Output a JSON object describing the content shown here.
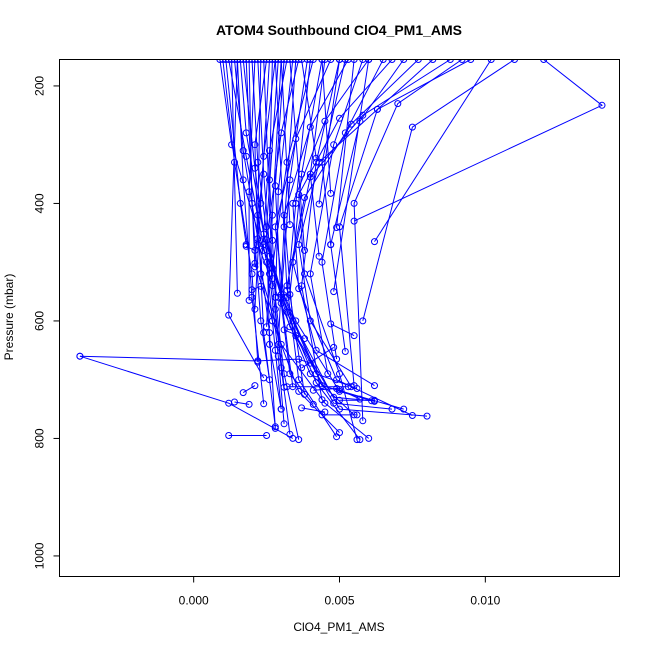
{
  "chart_data": {
    "type": "line",
    "title": "ATOM4 Southbound ClO4_PM1_AMS",
    "xlabel": "ClO4_PM1_AMS",
    "ylabel": "Pressure (mbar)",
    "xlim": [
      -0.0046,
      0.0146
    ],
    "ylim": [
      1035,
      155
    ],
    "y_reversed": true,
    "x_ticks": [
      0.0,
      0.005,
      0.01
    ],
    "x_tick_labels": [
      "0.000",
      "0.005",
      "0.010"
    ],
    "y_ticks": [
      200,
      400,
      600,
      800,
      1000
    ],
    "y_tick_labels": [
      "200",
      "400",
      "600",
      "800",
      "1000"
    ],
    "grid": false,
    "legend": "none",
    "colors": {
      "series": "#0000ff",
      "axis": "#000000",
      "background": "#ffffff"
    },
    "marker": "open-circle",
    "series": [
      {
        "x": [
          0.0009,
          0.0013,
          0.0024,
          0.0035,
          0.005,
          0.0062
        ],
        "y": [
          155,
          300,
          480,
          600,
          720,
          737
        ]
      },
      {
        "x": [
          0.0016,
          0.0018,
          0.0024,
          0.003,
          0.0042,
          0.0056
        ],
        "y": [
          155,
          280,
          452,
          555,
          690,
          715
        ]
      },
      {
        "x": [
          0.002,
          0.0022,
          0.0026,
          0.0033,
          0.0048,
          0.0068
        ],
        "y": [
          155,
          330,
          490,
          610,
          740,
          750
        ]
      },
      {
        "x": [
          0.0025,
          0.0021,
          0.0022,
          0.0029,
          0.004,
          0.0055
        ],
        "y": [
          155,
          300,
          470,
          560,
          690,
          760
        ]
      },
      {
        "x": [
          0.0028,
          0.0024,
          0.0021,
          0.0027,
          0.0036,
          0.005
        ],
        "y": [
          155,
          320,
          502,
          600,
          720,
          790
        ]
      },
      {
        "x": [
          0.0032,
          0.0026,
          0.0023,
          0.003,
          0.0045,
          0.006
        ],
        "y": [
          155,
          310,
          520,
          640,
          740,
          800
        ]
      },
      {
        "x": [
          0.0036,
          0.003,
          0.0025,
          0.0032,
          0.0042,
          0.0057
        ],
        "y": [
          155,
          280,
          462,
          585,
          705,
          802
        ]
      },
      {
        "x": [
          0.0041,
          0.0032,
          0.0027,
          0.0035,
          0.0048,
          0.0061
        ],
        "y": [
          155,
          330,
          510,
          625,
          730,
          736
        ]
      },
      {
        "x": [
          0.0047,
          0.0035,
          0.0028,
          0.0031,
          0.0044,
          0.0072
        ],
        "y": [
          155,
          290,
          440,
          560,
          710,
          750
        ]
      },
      {
        "x": [
          0.0053,
          0.004,
          0.0031,
          0.0034,
          0.005,
          0.008
        ],
        "y": [
          155,
          270,
          420,
          600,
          750,
          762
        ]
      },
      {
        "x": [
          0.006,
          0.0045,
          0.0034,
          0.0036,
          0.0049,
          0.0075
        ],
        "y": [
          155,
          260,
          400,
          545,
          700,
          761
        ]
      },
      {
        "x": [
          0.0068,
          0.005,
          0.0036,
          0.0038,
          0.005,
          0.0056
        ],
        "y": [
          155,
          255,
          385,
          520,
          690,
          802
        ]
      },
      {
        "x": [
          0.0077,
          0.0054,
          0.0038,
          0.0032,
          0.0036,
          0.0049
        ],
        "y": [
          155,
          265,
          390,
          540,
          700,
          797
        ]
      },
      {
        "x": [
          0.0088,
          0.0058,
          0.004,
          0.0034,
          0.0042,
          0.0062
        ],
        "y": [
          155,
          250,
          355,
          500,
          650,
          710
        ]
      },
      {
        "x": [
          0.0095,
          0.0063,
          0.0043,
          0.0036,
          0.004,
          0.0054
        ],
        "y": [
          155,
          240,
          330,
          470,
          600,
          712
        ]
      },
      {
        "x": [
          0.0012,
          0.0018,
          0.0025,
          0.0028,
          0.003
        ],
        "y": [
          155,
          320,
          500,
          650,
          750
        ]
      },
      {
        "x": [
          0.0017,
          0.0021,
          0.0026,
          0.0029,
          0.0031
        ],
        "y": [
          155,
          340,
          520,
          660,
          775
        ]
      },
      {
        "x": [
          0.0022,
          0.0024,
          0.0027,
          0.003,
          0.0033
        ],
        "y": [
          155,
          350,
          540,
          680,
          793
        ]
      },
      {
        "x": [
          0.0027,
          0.0026,
          0.0028,
          0.0031,
          0.0036
        ],
        "y": [
          155,
          360,
          560,
          690,
          802
        ]
      },
      {
        "x": [
          0.0031,
          0.0028,
          0.003,
          0.0033,
          0.0041
        ],
        "y": [
          155,
          370,
          570,
          690,
          742
        ]
      },
      {
        "x": [
          0.0014,
          0.0017,
          0.0022,
          0.0026,
          0.0028
        ],
        "y": [
          155,
          310,
          460,
          620,
          783
        ]
      },
      {
        "x": [
          0.001,
          0.0014,
          0.002,
          0.0022
        ],
        "y": [
          155,
          330,
          520,
          670
        ]
      },
      {
        "x": [
          0.0015,
          0.0017,
          0.002,
          0.0024
        ],
        "y": [
          155,
          360,
          560,
          741
        ]
      },
      {
        "x": [
          0.0019,
          0.002,
          0.0023,
          0.0026
        ],
        "y": [
          155,
          400,
          600,
          700
        ]
      },
      {
        "x": [
          0.0023,
          0.0022,
          0.0024,
          0.0028
        ],
        "y": [
          155,
          420,
          620,
          780
        ]
      },
      {
        "x": [
          0.0029,
          0.0025,
          0.0026,
          0.003
        ],
        "y": [
          155,
          440,
          640,
          750
        ]
      },
      {
        "x": [
          0.0034,
          0.0029,
          0.0028,
          0.0031
        ],
        "y": [
          155,
          380,
          580,
          713
        ]
      },
      {
        "x": [
          0.0039,
          0.0033,
          0.003,
          0.0034
        ],
        "y": [
          155,
          360,
          560,
          712
        ]
      },
      {
        "x": [
          0.0044,
          0.0037,
          0.0033,
          0.0038
        ],
        "y": [
          155,
          350,
          555,
          725
        ]
      },
      {
        "x": [
          0.005,
          0.0042,
          0.0037,
          0.0044
        ],
        "y": [
          155,
          330,
          540,
          734
        ]
      },
      {
        "x": [
          0.0058,
          0.0048,
          0.004,
          0.0046
        ],
        "y": [
          155,
          300,
          520,
          690
        ]
      },
      {
        "x": [
          0.0065,
          0.0052,
          0.0044,
          0.0049
        ],
        "y": [
          155,
          280,
          500,
          665
        ]
      },
      {
        "x": [
          0.0072,
          0.0057,
          0.0047,
          0.0052
        ],
        "y": [
          155,
          260,
          470,
          652
        ]
      },
      {
        "x": [
          0.0082,
          0.0063,
          0.005,
          0.0055
        ],
        "y": [
          155,
          240,
          440,
          710
        ]
      },
      {
        "x": [
          0.0092,
          0.007,
          0.0055,
          0.0058
        ],
        "y": [
          155,
          230,
          400,
          770
        ]
      },
      {
        "x": [
          0.0102,
          0.0062
        ],
        "y": [
          155,
          465
        ]
      },
      {
        "x": [
          0.011,
          0.0075,
          0.0058
        ],
        "y": [
          155,
          270,
          600
        ]
      },
      {
        "x": [
          0.0011,
          0.0016,
          0.0018
        ],
        "y": [
          155,
          400,
          470
        ]
      },
      {
        "x": [
          0.0021,
          0.0019,
          0.0019
        ],
        "y": [
          155,
          380,
          565
        ]
      },
      {
        "x": [
          0.0026,
          0.0023,
          0.0021
        ],
        "y": [
          155,
          400,
          580
        ]
      },
      {
        "x": [
          0.003,
          0.0027,
          0.0025
        ],
        "y": [
          155,
          420,
          610
        ]
      },
      {
        "x": [
          0.0035,
          0.0031,
          0.0029
        ],
        "y": [
          155,
          440,
          640
        ]
      },
      {
        "x": [
          0.004,
          0.0035,
          0.0032
        ],
        "y": [
          155,
          400,
          560
        ]
      },
      {
        "x": [
          0.0045,
          0.004,
          0.0043
        ],
        "y": [
          155,
          350,
          490
        ]
      },
      {
        "x": [
          0.0052,
          0.0044,
          0.0047
        ],
        "y": [
          155,
          330,
          470
        ]
      },
      {
        "x": [
          0.003,
          0.0033
        ],
        "y": [
          155,
          436
        ]
      },
      {
        "x": [
          0.0037,
          0.0042
        ],
        "y": [
          155,
          323
        ]
      },
      {
        "x": [
          0.0044,
          0.0047
        ],
        "y": [
          155,
          383
        ]
      },
      {
        "x": [
          0.005,
          0.0043
        ],
        "y": [
          155,
          401
        ]
      },
      {
        "x": [
          0.0055,
          0.0049
        ],
        "y": [
          155,
          441
        ]
      },
      {
        "x": [
          0.006,
          0.0048
        ],
        "y": [
          155,
          550
        ]
      },
      {
        "x": [
          0.0018,
          0.0021
        ],
        "y": [
          155,
          508
        ]
      },
      {
        "x": [
          0.0024,
          0.0027
        ],
        "y": [
          155,
          528
        ]
      },
      {
        "x": [
          0.0028,
          0.0032
        ],
        "y": [
          155,
          548
        ]
      },
      {
        "x": [
          0.0013,
          0.0015
        ],
        "y": [
          155,
          553
        ]
      },
      {
        "x": [
          0.0033,
          0.0038
        ],
        "y": [
          155,
          480
        ]
      },
      {
        "x": [
          0.012,
          0.014,
          0.0055
        ],
        "y": [
          155,
          233,
          430
        ]
      },
      {
        "x": [
          0.0015,
          0.0012,
          0.0024
        ],
        "y": [
          155,
          590,
          697
        ]
      },
      {
        "x": [
          -0.0039,
          0.0022,
          0.0036,
          0.004
        ],
        "y": [
          660,
          668,
          665,
          672
        ]
      },
      {
        "x": [
          -0.0039,
          0.0012,
          0.0034
        ],
        "y": [
          660,
          740,
          800
        ]
      },
      {
        "x": [
          0.0012,
          0.0025
        ],
        "y": [
          795,
          795
        ]
      },
      {
        "x": [
          0.0014,
          0.0019
        ],
        "y": [
          738,
          742
        ]
      },
      {
        "x": [
          0.0032,
          0.0053
        ],
        "y": [
          712,
          712
        ]
      },
      {
        "x": [
          0.0044,
          0.0056
        ],
        "y": [
          760,
          760
        ]
      },
      {
        "x": [
          0.005,
          0.0062
        ],
        "y": [
          735,
          735
        ]
      },
      {
        "x": [
          0.0017,
          0.0021
        ],
        "y": [
          722,
          710
        ]
      },
      {
        "x": [
          0.0037,
          0.0045
        ],
        "y": [
          748,
          755
        ]
      },
      {
        "x": [
          0.0018,
          0.0021
        ],
        "y": [
          473,
          480
        ]
      },
      {
        "x": [
          0.0024,
          0.0027
        ],
        "y": [
          470,
          463
        ]
      },
      {
        "x": [
          0.002,
          0.0023
        ],
        "y": [
          547,
          541
        ]
      },
      {
        "x": [
          0.0041,
          0.0049
        ],
        "y": [
          718,
          715
        ]
      },
      {
        "x": [
          0.005,
          0.0057
        ],
        "y": [
          717,
          733
        ]
      },
      {
        "x": [
          0.0037,
          0.0048
        ],
        "y": [
          680,
          645
        ]
      },
      {
        "x": [
          0.0047,
          0.0055
        ],
        "y": [
          605,
          625
        ]
      },
      {
        "x": [
          0.0031,
          0.0038
        ],
        "y": [
          615,
          630
        ]
      }
    ]
  }
}
